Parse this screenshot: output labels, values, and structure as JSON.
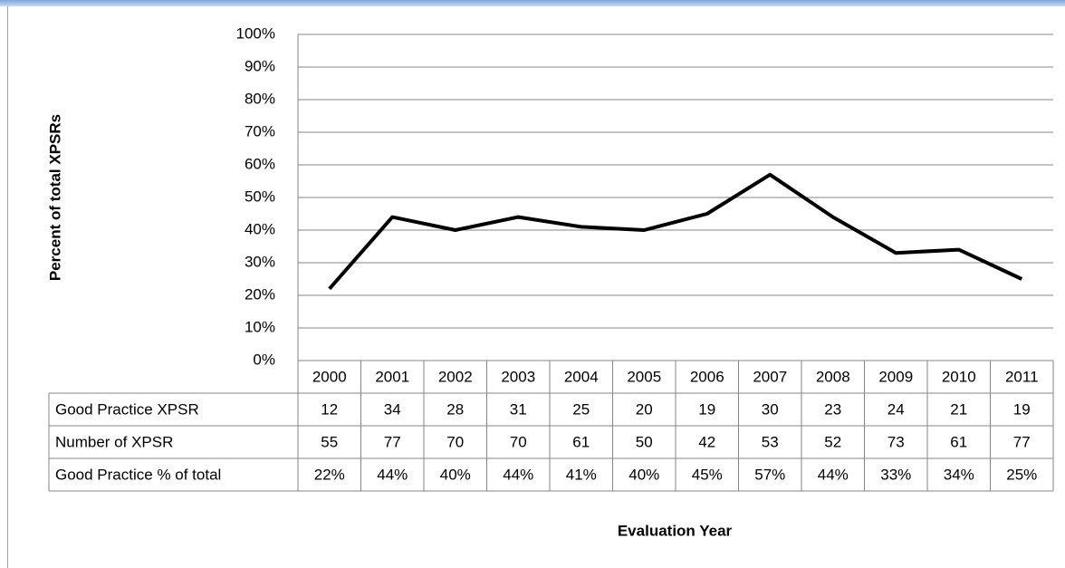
{
  "chart_data": {
    "type": "line",
    "y_label": "Percent of total XPSRs",
    "x_label": "Evaluation Year",
    "categories": [
      "2000",
      "2001",
      "2002",
      "2003",
      "2004",
      "2005",
      "2006",
      "2007",
      "2008",
      "2009",
      "2010",
      "2011"
    ],
    "series": [
      {
        "name": "Good Practice % of total",
        "color": "#000000",
        "values": [
          22,
          44,
          40,
          44,
          41,
          40,
          45,
          57,
          44,
          33,
          34,
          25
        ],
        "value_labels": [
          "22%",
          "44%",
          "40%",
          "44%",
          "41%",
          "40%",
          "45%",
          "57%",
          "44%",
          "33%",
          "34%",
          "25%"
        ]
      }
    ],
    "table_rows": [
      {
        "name": "Good Practice XPSR",
        "values": [
          12,
          34,
          28,
          31,
          25,
          20,
          19,
          30,
          23,
          24,
          21,
          19
        ]
      },
      {
        "name": "Number of XPSR",
        "values": [
          55,
          77,
          70,
          70,
          61,
          50,
          42,
          53,
          52,
          73,
          61,
          77
        ]
      }
    ],
    "ylim": [
      0,
      100
    ],
    "yticks": [
      {
        "value": 0,
        "label": "0%"
      },
      {
        "value": 10,
        "label": "10%"
      },
      {
        "value": 20,
        "label": "20%"
      },
      {
        "value": 30,
        "label": "30%"
      },
      {
        "value": 40,
        "label": "40%"
      },
      {
        "value": 50,
        "label": "50%"
      },
      {
        "value": 60,
        "label": "60%"
      },
      {
        "value": 70,
        "label": "70%"
      },
      {
        "value": 80,
        "label": "80%"
      },
      {
        "value": 90,
        "label": "90%"
      },
      {
        "value": 100,
        "label": "100%"
      }
    ],
    "grid": true
  }
}
